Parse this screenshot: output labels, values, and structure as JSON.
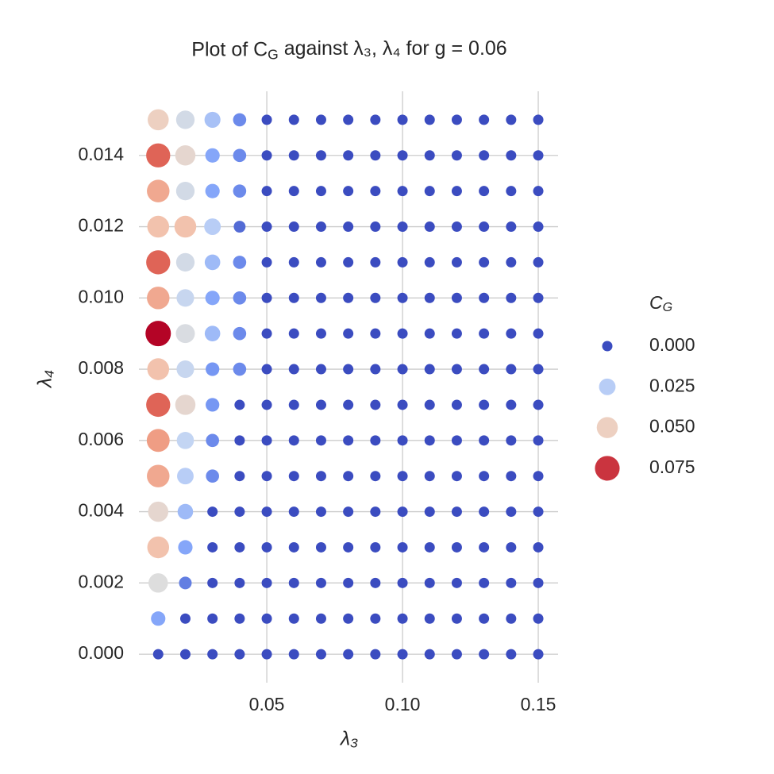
{
  "chart_data": {
    "type": "scatter",
    "title": "Plot of C_G against λ₃, λ₄ for g = 0.06",
    "x_label": "λ₃",
    "y_label": "λ₄",
    "legend_title": "C_G",
    "cmap": "coolwarm",
    "grid": true,
    "legend": "right",
    "x": [
      0.01,
      0.02,
      0.03,
      0.04,
      0.05,
      0.06,
      0.07,
      0.08,
      0.09,
      0.1,
      0.11,
      0.12,
      0.13,
      0.14,
      0.15
    ],
    "y": [
      0.0,
      0.001,
      0.002,
      0.003,
      0.004,
      0.005,
      0.006,
      0.007,
      0.008,
      0.009,
      0.01,
      0.011,
      0.012,
      0.013,
      0.014,
      0.015
    ],
    "values": [
      [
        0,
        0,
        0,
        0,
        0,
        0,
        0,
        0,
        0,
        0,
        0,
        0,
        0,
        0,
        0
      ],
      [
        0.015,
        0,
        0,
        0,
        0,
        0,
        0,
        0,
        0,
        0,
        0,
        0,
        0,
        0,
        0
      ],
      [
        0.04,
        0.008,
        0,
        0,
        0,
        0,
        0,
        0,
        0,
        0,
        0,
        0,
        0,
        0,
        0
      ],
      [
        0.055,
        0.015,
        0,
        0,
        0,
        0,
        0,
        0,
        0,
        0,
        0,
        0,
        0,
        0,
        0
      ],
      [
        0.045,
        0.02,
        0,
        0,
        0,
        0,
        0,
        0,
        0,
        0,
        0,
        0,
        0,
        0,
        0
      ],
      [
        0.06,
        0.025,
        0.01,
        0,
        0,
        0,
        0,
        0,
        0,
        0,
        0,
        0,
        0,
        0,
        0
      ],
      [
        0.062,
        0.028,
        0.01,
        0,
        0,
        0,
        0,
        0,
        0,
        0,
        0,
        0,
        0,
        0,
        0
      ],
      [
        0.07,
        0.045,
        0.012,
        0,
        0,
        0,
        0,
        0,
        0,
        0,
        0,
        0,
        0,
        0,
        0
      ],
      [
        0.055,
        0.03,
        0.012,
        0.01,
        0,
        0,
        0,
        0,
        0,
        0,
        0,
        0,
        0,
        0,
        0
      ],
      [
        0.08,
        0.038,
        0.02,
        0.01,
        0,
        0,
        0,
        0,
        0,
        0,
        0,
        0,
        0,
        0,
        0
      ],
      [
        0.06,
        0.03,
        0.015,
        0.01,
        0,
        0,
        0,
        0,
        0,
        0,
        0,
        0,
        0,
        0,
        0
      ],
      [
        0.07,
        0.035,
        0.02,
        0.01,
        0,
        0,
        0,
        0,
        0,
        0,
        0,
        0,
        0,
        0,
        0
      ],
      [
        0.055,
        0.055,
        0.025,
        0.005,
        0,
        0,
        0,
        0,
        0,
        0,
        0,
        0,
        0,
        0,
        0
      ],
      [
        0.06,
        0.035,
        0.015,
        0.01,
        0,
        0,
        0,
        0,
        0,
        0,
        0,
        0,
        0,
        0,
        0
      ],
      [
        0.07,
        0.045,
        0.015,
        0.01,
        0,
        0,
        0,
        0,
        0,
        0,
        0,
        0,
        0,
        0,
        0
      ],
      [
        0.05,
        0.035,
        0.022,
        0.01,
        0,
        0,
        0,
        0,
        0,
        0,
        0,
        0,
        0,
        0,
        0
      ]
    ],
    "legend_values": [
      {
        "value": 0,
        "label": "0.000"
      },
      {
        "value": 0.025,
        "label": "0.025"
      },
      {
        "value": 0.05,
        "label": "0.050"
      },
      {
        "value": 0.075,
        "label": "0.075"
      }
    ],
    "xlim": [
      0.0029,
      0.1573
    ],
    "ylim": [
      -0.0008,
      0.0158
    ],
    "xticks": [
      {
        "value": 0.05,
        "label": "0.05"
      },
      {
        "value": 0.1,
        "label": "0.10"
      },
      {
        "value": 0.15,
        "label": "0.15"
      }
    ],
    "yticks": [
      {
        "value": 0,
        "label": "0.000"
      },
      {
        "value": 0.002,
        "label": "0.002"
      },
      {
        "value": 0.004,
        "label": "0.004"
      },
      {
        "value": 0.006,
        "label": "0.006"
      },
      {
        "value": 0.008,
        "label": "0.008"
      },
      {
        "value": 0.01,
        "label": "0.010"
      },
      {
        "value": 0.012,
        "label": "0.012"
      },
      {
        "value": 0.014,
        "label": "0.014"
      }
    ]
  }
}
